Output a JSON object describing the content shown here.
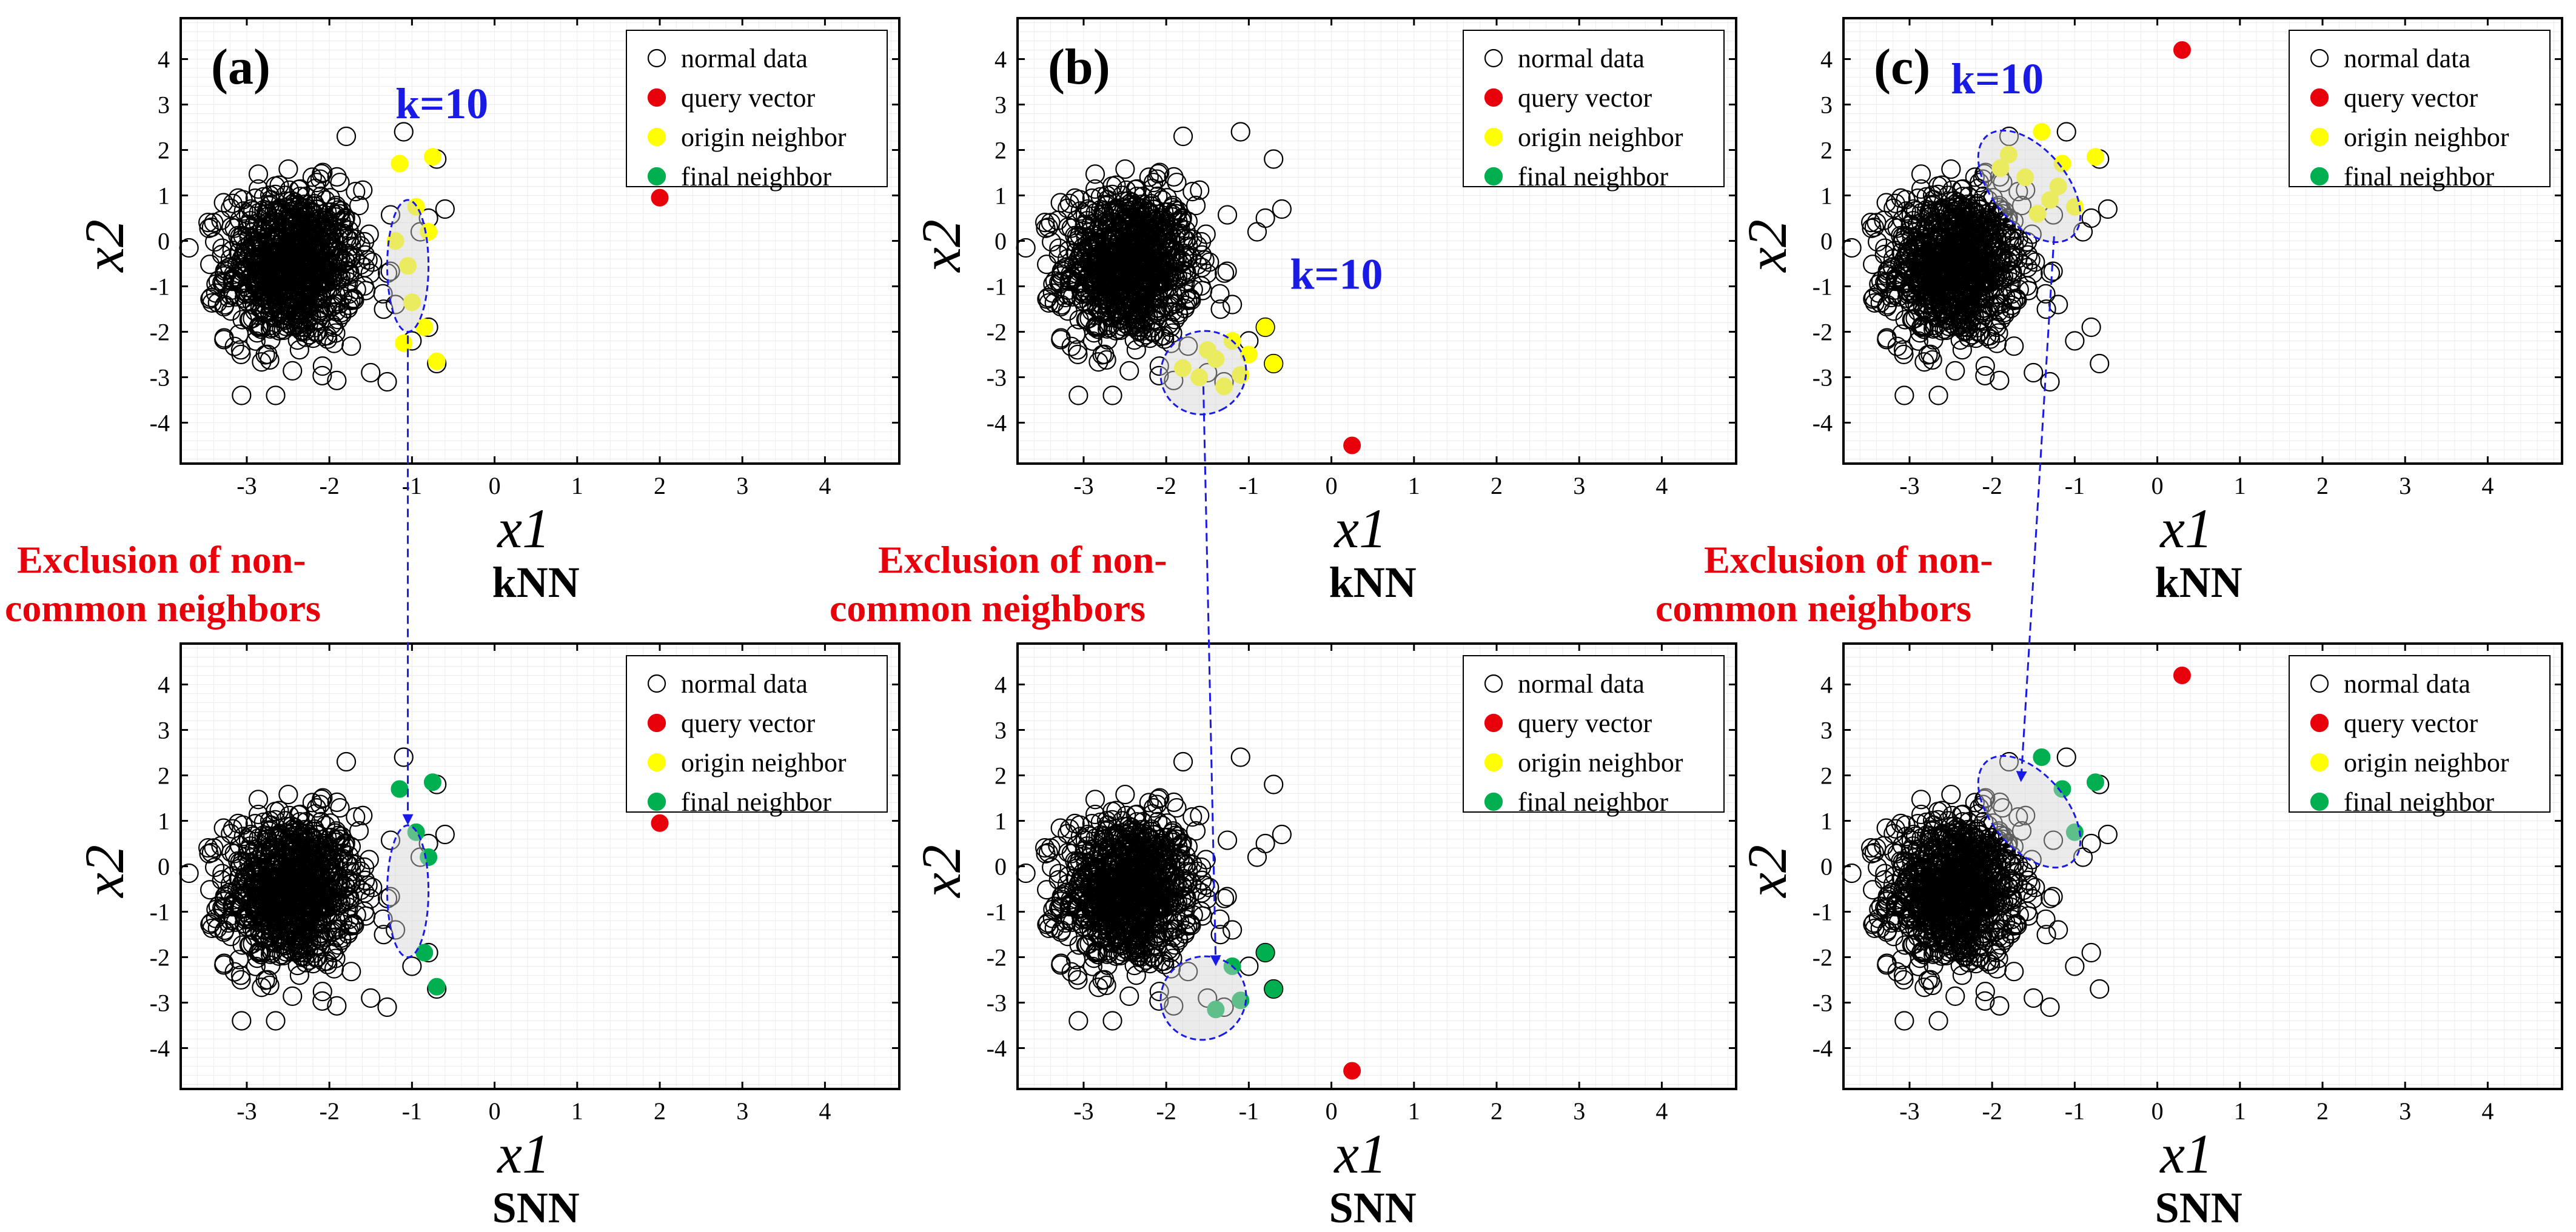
{
  "chart_data": {
    "type": "scatter",
    "xlabel": "x1",
    "ylabel": "x2",
    "xlim": [
      -3.8,
      4.9
    ],
    "ylim": [
      -4.9,
      4.9
    ],
    "xticks": [
      "-3",
      "-2",
      "-1",
      "0",
      "1",
      "2",
      "3",
      "4"
    ],
    "yticks": [
      "4",
      "3",
      "2",
      "1",
      "0",
      "-1",
      "-2",
      "-3",
      "-4"
    ],
    "legend": [
      {
        "label": "normal data",
        "color": "#000000",
        "style": "open"
      },
      {
        "label": "query vector",
        "color": "#e8000b",
        "style": "filled"
      },
      {
        "label": "origin neighbor",
        "color": "#ffff00",
        "style": "filled"
      },
      {
        "label": "final neighbor",
        "color": "#00b050",
        "style": "filled"
      }
    ],
    "normal_cluster": {
      "center": [
        -2.45,
        -0.55
      ],
      "spread": [
        0.72,
        1.4
      ],
      "count": 900
    },
    "outliers": [
      [
        -1.1,
        2.4
      ],
      [
        -0.7,
        1.8
      ],
      [
        -0.8,
        0.5
      ],
      [
        -0.9,
        0.2
      ],
      [
        -1.2,
        -1.4
      ],
      [
        -0.8,
        -1.9
      ],
      [
        -0.7,
        -2.7
      ],
      [
        -1.3,
        -3.1
      ],
      [
        -1.0,
        -2.2
      ],
      [
        -1.5,
        -2.9
      ],
      [
        -0.6,
        0.7
      ]
    ],
    "panels": [
      {
        "id": "a",
        "label": "(a)",
        "k_label": "k=10",
        "query": [
          2.0,
          0.95
        ],
        "neighbor_region": {
          "center": [
            -1.05,
            -0.55
          ],
          "radii": [
            0.25,
            1.45
          ],
          "angle": 0
        },
        "origin_neighbors": [
          [
            -1.15,
            1.7
          ],
          [
            -0.75,
            1.85
          ],
          [
            -0.95,
            0.75
          ],
          [
            -0.8,
            0.2
          ],
          [
            -1.05,
            -0.55
          ],
          [
            -0.85,
            -1.9
          ],
          [
            -0.7,
            -2.65
          ],
          [
            -1.1,
            -2.25
          ],
          [
            -1.0,
            -1.35
          ],
          [
            -1.2,
            0.0
          ]
        ],
        "final_neighbors": [
          [
            -1.15,
            1.7
          ],
          [
            -0.75,
            1.85
          ],
          [
            -0.95,
            0.75
          ],
          [
            -0.8,
            0.2
          ],
          [
            -0.85,
            -1.9
          ],
          [
            -0.7,
            -2.65
          ]
        ],
        "knn": {
          "method": "kNN"
        },
        "snn": {
          "method": "SNN"
        }
      },
      {
        "id": "b",
        "label": "(b)",
        "k_label": "k=10",
        "query": [
          0.25,
          -4.5
        ],
        "neighbor_region": {
          "center": [
            -1.55,
            -2.9
          ],
          "radii": [
            0.5,
            0.95
          ],
          "angle": 60
        },
        "origin_neighbors": [
          [
            -1.2,
            -2.2
          ],
          [
            -0.8,
            -1.9
          ],
          [
            -0.7,
            -2.7
          ],
          [
            -1.1,
            -2.95
          ],
          [
            -1.4,
            -2.6
          ],
          [
            -1.6,
            -3.0
          ],
          [
            -1.3,
            -3.2
          ],
          [
            -1.5,
            -2.4
          ],
          [
            -1.8,
            -2.8
          ],
          [
            -1.0,
            -2.5
          ]
        ],
        "final_neighbors": [
          [
            -1.2,
            -2.2
          ],
          [
            -0.8,
            -1.9
          ],
          [
            -0.7,
            -2.7
          ],
          [
            -1.1,
            -2.95
          ],
          [
            -1.4,
            -3.15
          ]
        ],
        "knn": {
          "method": "kNN"
        },
        "snn": {
          "method": "SNN"
        }
      },
      {
        "id": "c",
        "label": "(c)",
        "k_label": "k=10",
        "query": [
          0.3,
          4.2
        ],
        "neighbor_region": {
          "center": [
            -1.55,
            1.2
          ],
          "radii": [
            0.45,
            1.45
          ],
          "angle": -40
        },
        "origin_neighbors": [
          [
            -1.4,
            2.4
          ],
          [
            -0.75,
            1.85
          ],
          [
            -1.15,
            1.7
          ],
          [
            -1.0,
            0.75
          ],
          [
            -1.3,
            0.9
          ],
          [
            -1.6,
            1.4
          ],
          [
            -1.8,
            1.9
          ],
          [
            -1.2,
            1.2
          ],
          [
            -1.45,
            0.6
          ],
          [
            -1.9,
            1.6
          ]
        ],
        "final_neighbors": [
          [
            -1.4,
            2.4
          ],
          [
            -0.75,
            1.85
          ],
          [
            -1.15,
            1.7
          ],
          [
            -1.0,
            0.75
          ]
        ],
        "knn": {
          "method": "kNN"
        },
        "snn": {
          "method": "SNN"
        }
      }
    ]
  },
  "annotation": {
    "line1": "Exclusion of non-",
    "line2": "common neighbors"
  }
}
